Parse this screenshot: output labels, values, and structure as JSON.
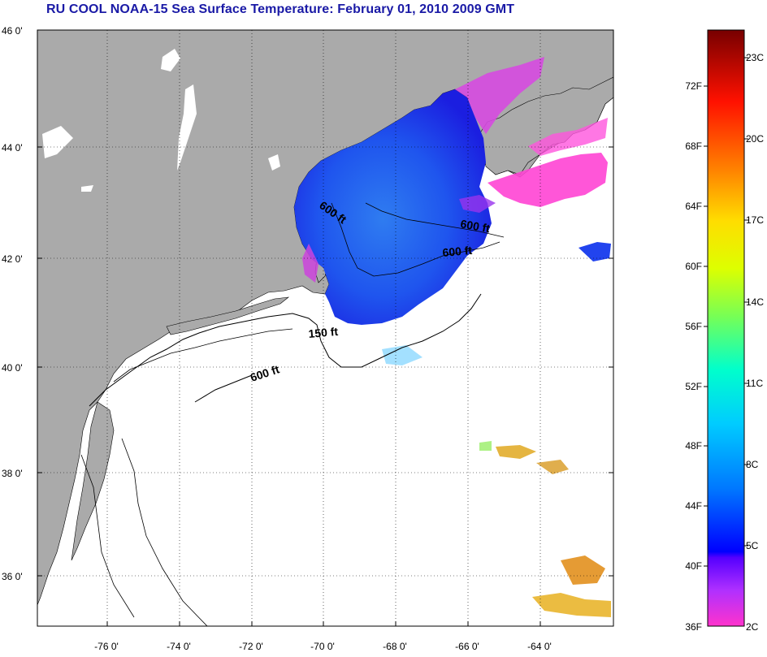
{
  "title": "RU COOL  NOAA-15  Sea Surface Temperature:  February 01, 2010 2009 GMT",
  "y_tick_labels": [
    "46 0'",
    "44 0'",
    "42 0'",
    "40 0'",
    "38 0'",
    "36 0'"
  ],
  "x_tick_labels": [
    "-76 0'",
    "-74 0'",
    "-72 0'",
    "-70 0'",
    "-68 0'",
    "-66 0'",
    "-64 0'"
  ],
  "depth_labels": [
    "600 ft",
    "600 ft",
    "600 ft",
    "150 ft",
    "600 ft"
  ],
  "colorbar": {
    "f_labels": [
      "72F",
      "68F",
      "64F",
      "60F",
      "56F",
      "52F",
      "48F",
      "44F",
      "40F",
      "36F"
    ],
    "c_labels": [
      "23C",
      "20C",
      "17C",
      "14C",
      "11C",
      "8C",
      "5C",
      "2C"
    ]
  },
  "colors": {
    "title": "#1a1aa6",
    "land": "#aaaaaa",
    "ocean": "#ffffff",
    "grid": "#000000"
  }
}
